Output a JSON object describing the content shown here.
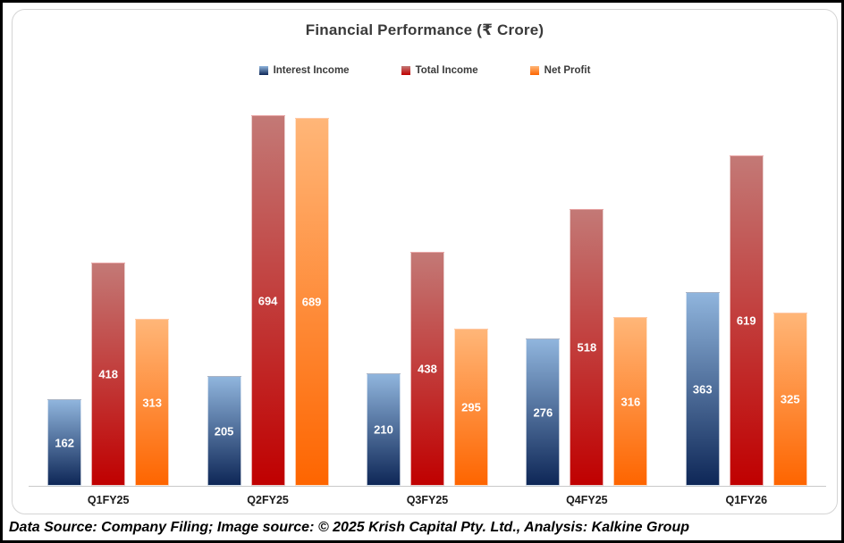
{
  "title": "Financial Performance (₹ Crore)",
  "footer": "Data Source: Company Filing; Image source: © 2025 Krish Capital Pty. Ltd., Analysis: Kalkine Group",
  "chart_data": {
    "type": "bar",
    "title": "Financial Performance (₹ Crore)",
    "categories": [
      "Q1FY25",
      "Q2FY25",
      "Q3FY25",
      "Q4FY25",
      "Q1FY26"
    ],
    "series": [
      {
        "name": "Interest Income",
        "values": [
          162,
          205,
          210,
          276,
          363
        ],
        "color_top": "#90B5DD",
        "color_bottom": "#0E2757"
      },
      {
        "name": "Total Income",
        "values": [
          418,
          694,
          438,
          518,
          619
        ],
        "color_top": "#C37976",
        "color_bottom": "#C00000"
      },
      {
        "name": "Net Profit",
        "values": [
          313,
          689,
          295,
          316,
          325
        ],
        "color_top": "#FFB678",
        "color_bottom": "#FE6500"
      }
    ],
    "ylim": [
      0,
      702
    ],
    "xlabel": "",
    "ylabel": "",
    "grid": false,
    "legend_position": "top",
    "data_labels": "inside-center",
    "baseline_color": "#C9C9C9"
  }
}
